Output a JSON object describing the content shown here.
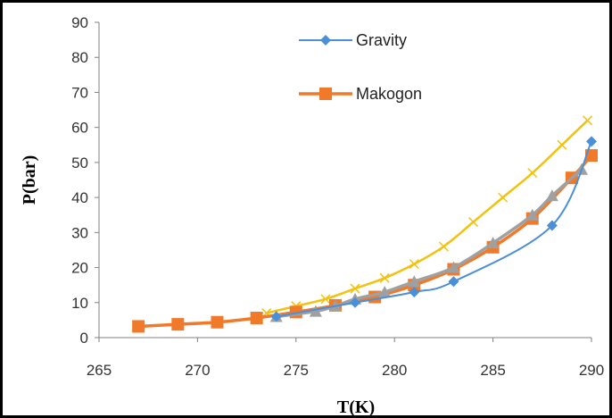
{
  "chart_data": {
    "type": "line",
    "xlabel": "T(K)",
    "ylabel": "P(bar)",
    "xlim": [
      265,
      290
    ],
    "ylim": [
      0,
      90
    ],
    "x_ticks": [
      "265",
      "270",
      "275",
      "280",
      "285",
      "290"
    ],
    "y_ticks": [
      "0",
      "10",
      "20",
      "30",
      "40",
      "50",
      "60",
      "70",
      "80",
      "90"
    ],
    "grid": false,
    "legend_position": "top-center",
    "series": [
      {
        "name": "Gravity",
        "color": "#4a8fd8",
        "marker": "diamond",
        "x": [
          274,
          278,
          281,
          283,
          288,
          290
        ],
        "y": [
          6,
          10,
          13,
          16,
          32,
          56
        ]
      },
      {
        "name": "Makogon",
        "color": "#f07a2a",
        "marker": "square",
        "x": [
          267,
          269,
          271,
          273,
          275,
          277,
          279,
          281,
          283,
          285,
          287,
          289,
          290
        ],
        "y": [
          3.2,
          3.8,
          4.4,
          5.6,
          7.3,
          9.2,
          11.6,
          15.0,
          19.5,
          25.8,
          34.0,
          45.6,
          52
        ]
      },
      {
        "name": "",
        "color": "#f2c20f",
        "marker": "x",
        "x": [
          273.5,
          275,
          276.5,
          278,
          279.5,
          281,
          282.5,
          284,
          285.5,
          287,
          288.5,
          289.8
        ],
        "y": [
          7,
          9,
          11,
          14,
          17,
          21,
          26,
          33,
          40,
          47,
          55,
          62
        ]
      },
      {
        "name": "",
        "color": "#a0a0a0",
        "marker": "triangle",
        "x": [
          274,
          276,
          277,
          278,
          279.5,
          281,
          283,
          285,
          287,
          288,
          289.5
        ],
        "y": [
          6,
          7.5,
          9,
          11,
          13,
          16,
          20,
          27,
          35,
          40.5,
          48
        ]
      }
    ]
  }
}
